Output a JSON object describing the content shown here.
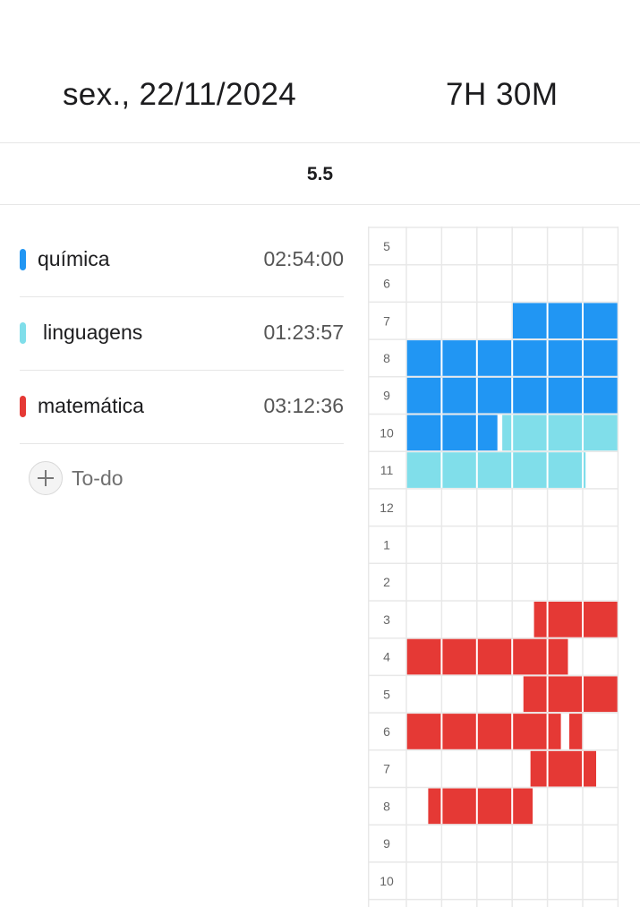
{
  "header": {
    "date": "sex., 22/11/2024",
    "total_time": "7H 30M"
  },
  "score": "5.5",
  "subjects": [
    {
      "name": "química",
      "time": "02:54:00",
      "color": "#2196f3"
    },
    {
      "name": "linguagens",
      "time": "01:23:57",
      "color": "#80deea"
    },
    {
      "name": "matemática",
      "time": "03:12:36",
      "color": "#e53935"
    }
  ],
  "todo": {
    "label": "To-do",
    "icon": "plus-icon"
  },
  "timeline": {
    "hours": [
      "5",
      "6",
      "7",
      "8",
      "9",
      "10",
      "11",
      "12",
      "1",
      "2",
      "3",
      "4",
      "5",
      "6",
      "7",
      "8",
      "9",
      "10"
    ],
    "grid_color": "#e8e8e8",
    "minutes_per_cell": 10,
    "blocks": [
      {
        "subject": "química",
        "hour": "7",
        "row": 2,
        "start_min": 30,
        "end_min": 60
      },
      {
        "subject": "química",
        "hour": "8",
        "row": 3,
        "start_min": 0,
        "end_min": 60
      },
      {
        "subject": "química",
        "hour": "9",
        "row": 4,
        "start_min": 0,
        "end_min": 60
      },
      {
        "subject": "química",
        "hour": "10",
        "row": 5,
        "start_min": 0,
        "end_min": 26
      },
      {
        "subject": "linguagens",
        "hour": "10",
        "row": 5,
        "start_min": 27,
        "end_min": 60
      },
      {
        "subject": "linguagens",
        "hour": "11",
        "row": 6,
        "start_min": 0,
        "end_min": 51
      },
      {
        "subject": "matemática",
        "hour": "3",
        "row": 10,
        "start_min": 36,
        "end_min": 60
      },
      {
        "subject": "matemática",
        "hour": "4",
        "row": 11,
        "start_min": 0,
        "end_min": 46
      },
      {
        "subject": "matemática",
        "hour": "5",
        "row": 12,
        "start_min": 33,
        "end_min": 60
      },
      {
        "subject": "matemática",
        "hour": "6",
        "row": 13,
        "start_min": 0,
        "end_min": 44
      },
      {
        "subject": "matemática",
        "hour": "6",
        "row": 13,
        "start_min": 46,
        "end_min": 50
      },
      {
        "subject": "matemática",
        "hour": "7",
        "row": 14,
        "start_min": 35,
        "end_min": 54
      },
      {
        "subject": "matemática",
        "hour": "8",
        "row": 15,
        "start_min": 6,
        "end_min": 36
      }
    ]
  }
}
